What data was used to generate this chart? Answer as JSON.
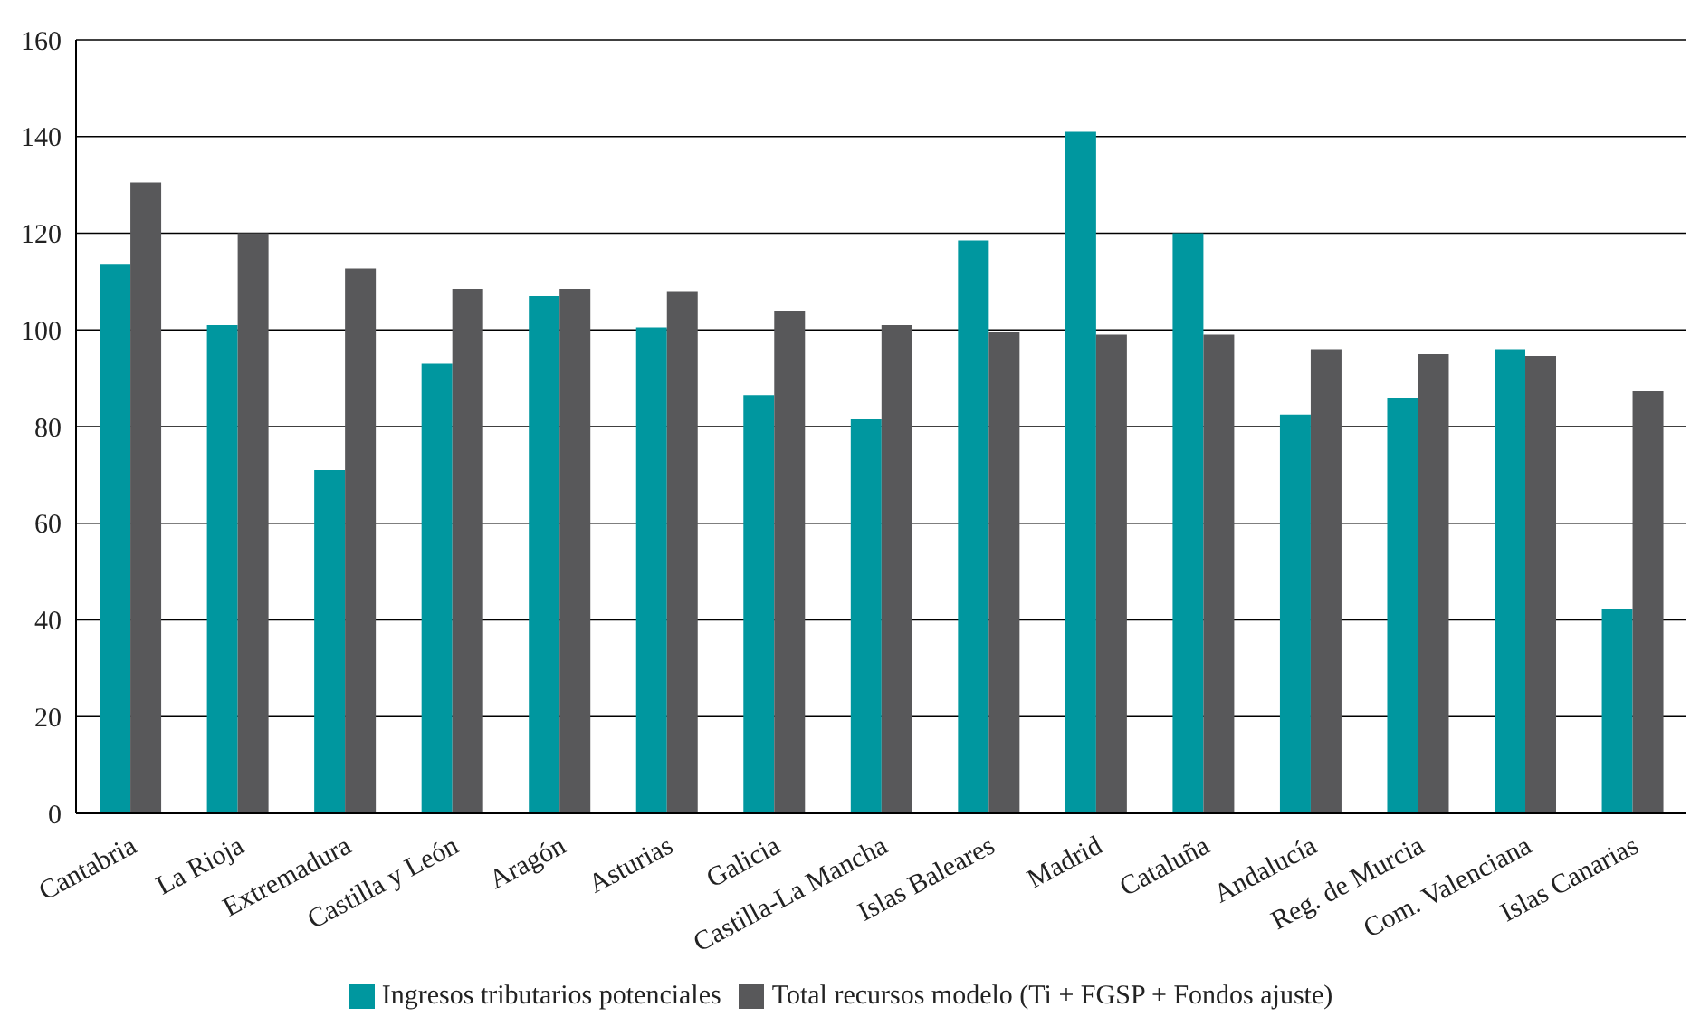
{
  "chart_data": {
    "type": "bar",
    "categories": [
      "Cantabria",
      "La Rioja",
      "Extremadura",
      "Castilla y León",
      "Aragón",
      "Asturias",
      "Galicia",
      "Castilla-La Mancha",
      "Islas Baleares",
      "Madrid",
      "Cataluña",
      "Andalucía",
      "Reg. de Murcia",
      "Com. Valenciana",
      "Islas Canarias"
    ],
    "series": [
      {
        "name": "Ingresos tributarios potenciales",
        "color": "#00979f",
        "values": [
          113.5,
          101,
          71,
          93,
          107,
          100.5,
          86.5,
          81.5,
          118.5,
          141,
          120,
          82.5,
          86,
          96,
          42.3
        ]
      },
      {
        "name": "Total recursos modelo (Ti + FGSP + Fondos ajuste)",
        "color": "#58585a",
        "values": [
          130.5,
          120,
          112.7,
          108.5,
          108.5,
          108,
          104,
          101,
          99.5,
          99,
          99,
          96,
          95,
          94.6,
          87.3
        ]
      }
    ],
    "ylim": [
      0,
      160
    ],
    "yticks": [
      0,
      20,
      40,
      60,
      80,
      100,
      120,
      140,
      160
    ],
    "grid": "y",
    "legend": "bottom"
  }
}
